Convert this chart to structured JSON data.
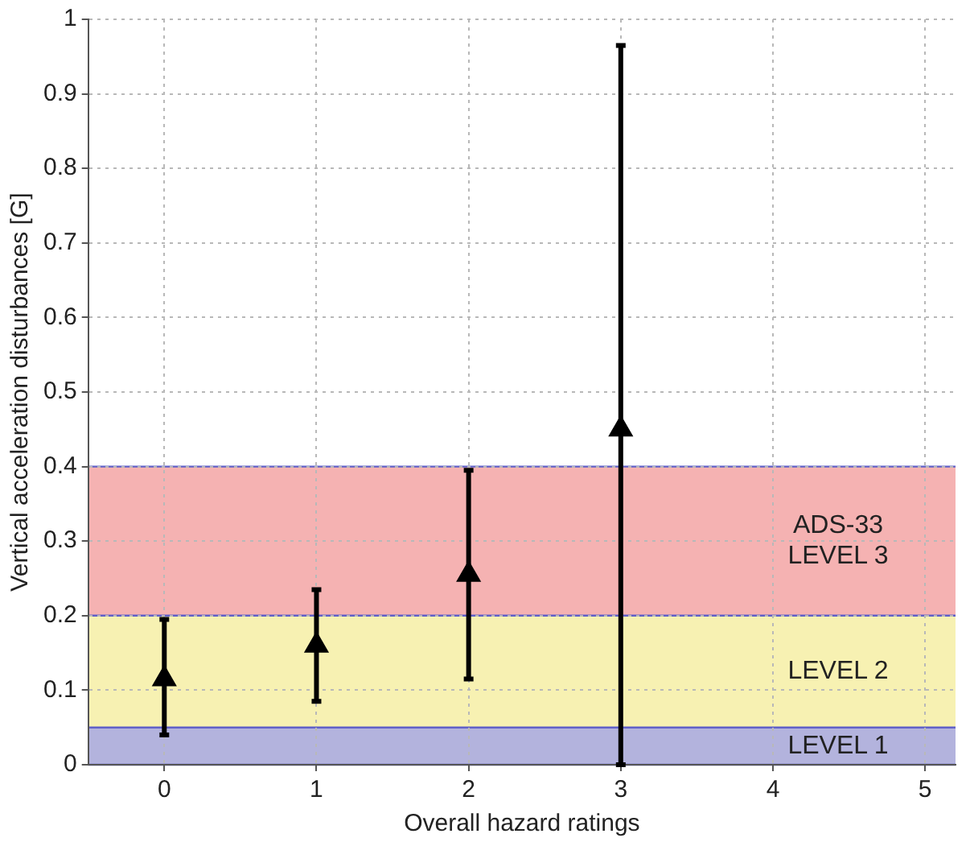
{
  "chart_data": {
    "type": "scatter",
    "xlabel": "Overall hazard ratings",
    "ylabel": "Vertical acceleration disturbances [G]",
    "x": [
      0,
      1,
      2,
      3
    ],
    "series": [
      {
        "color": "#000000",
        "values": [
          0.115,
          0.16,
          0.255,
          0.45
        ],
        "errors": [
          [
            0.04,
            0.195
          ],
          [
            0.085,
            0.235
          ],
          [
            0.115,
            0.395
          ],
          [
            0,
            0.965
          ]
        ]
      }
    ],
    "marker": "triangle",
    "grid": true,
    "xlim": [
      -0.5,
      5.2
    ],
    "xticks": [
      0,
      1,
      2,
      3,
      4,
      5
    ],
    "ylim": [
      0,
      1
    ],
    "yticks": [
      0,
      0.1,
      0.2,
      0.3,
      0.4,
      0.5,
      0.6,
      0.7,
      0.8,
      0.9,
      1
    ],
    "bands": [
      {
        "axis": "y",
        "from": 0,
        "to": 0.05,
        "label": "LEVEL 1",
        "color": "#b3b3dd"
      },
      {
        "axis": "y",
        "from": 0.05,
        "to": 0.2,
        "label": "LEVEL 2",
        "color": "#f7f1b2"
      },
      {
        "axis": "y",
        "from": 0.2,
        "to": 0.4,
        "label": "ADS-33 LEVEL 3",
        "color": "#f5b2b2"
      }
    ]
  }
}
